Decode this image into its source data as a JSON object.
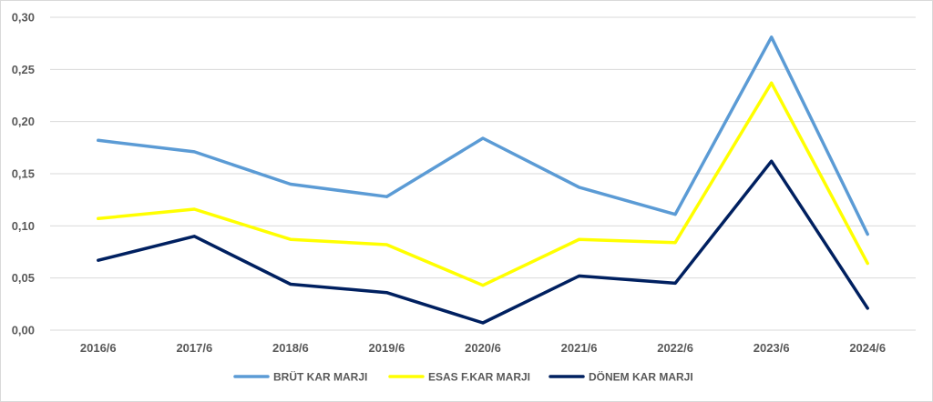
{
  "chart_data": {
    "type": "line",
    "categories": [
      "2016/6",
      "2017/6",
      "2018/6",
      "2019/6",
      "2020/6",
      "2021/6",
      "2022/6",
      "2023/6",
      "2024/6"
    ],
    "ylim": [
      0,
      0.3
    ],
    "yticks": [
      "0,00",
      "0,05",
      "0,10",
      "0,15",
      "0,20",
      "0,25",
      "0,30"
    ],
    "grid": true,
    "legend_position": "bottom",
    "series": [
      {
        "name": "BRÜT KAR MARJI",
        "color": "#5b9bd5",
        "values": [
          0.182,
          0.171,
          0.14,
          0.128,
          0.184,
          0.137,
          0.111,
          0.281,
          0.092
        ]
      },
      {
        "name": "ESAS F.KAR MARJI",
        "color": "#ffff00",
        "values": [
          0.107,
          0.116,
          0.087,
          0.082,
          0.043,
          0.087,
          0.084,
          0.237,
          0.064
        ]
      },
      {
        "name": "DÖNEM KAR MARJI",
        "color": "#002060",
        "values": [
          0.067,
          0.09,
          0.044,
          0.036,
          0.007,
          0.052,
          0.045,
          0.162,
          0.021
        ]
      }
    ]
  }
}
